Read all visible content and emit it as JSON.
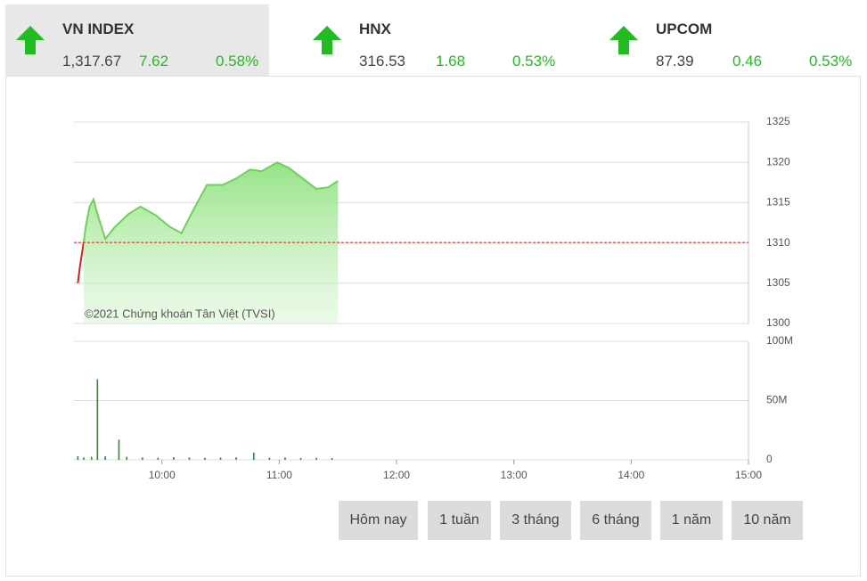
{
  "header": {
    "indices": [
      {
        "name": "VN INDEX",
        "value": "1,317.67",
        "change": "7.62",
        "percent": "0.58%"
      },
      {
        "name": "HNX",
        "value": "316.53",
        "change": "1.68",
        "percent": "0.53%"
      },
      {
        "name": "UPCOM",
        "value": "87.39",
        "change": "0.46",
        "percent": "0.53%"
      }
    ]
  },
  "ranges": [
    "Hôm nay",
    "1 tuần",
    "3 tháng",
    "6 tháng",
    "1 năm",
    "10 năm"
  ],
  "chart_data": [
    {
      "type": "area",
      "annotation": "©2021 Chứng khoán Tân Việt (TVSI)",
      "xlim": [
        "09:15",
        "15:00"
      ],
      "ylim": [
        1300,
        1325
      ],
      "yticks": [
        1300,
        1305,
        1310,
        1315,
        1320,
        1325
      ],
      "grid": true,
      "reference": 1310.05,
      "reference_color": "#d62020",
      "series": [
        {
          "color": "#d62020",
          "x": [
            "09:17",
            "09:18",
            "09:20"
          ],
          "values": [
            1305.0,
            1307.0,
            1310.1
          ]
        },
        {
          "color": "#7ddc6e",
          "x": [
            "09:20",
            "09:21",
            "09:23",
            "09:25",
            "09:27",
            "09:31",
            "09:36",
            "09:43",
            "09:49",
            "09:57",
            "10:04",
            "10:10",
            "10:15",
            "10:23",
            "10:31",
            "10:38",
            "10:45",
            "10:51",
            "10:59",
            "11:05",
            "11:12",
            "11:19",
            "11:25",
            "11:30"
          ],
          "values": [
            1310.1,
            1312.0,
            1314.5,
            1315.4,
            1313.6,
            1310.5,
            1312.0,
            1313.6,
            1314.5,
            1313.4,
            1312.0,
            1311.2,
            1313.6,
            1317.2,
            1317.2,
            1318.0,
            1319.1,
            1318.9,
            1320.0,
            1319.3,
            1318.0,
            1316.7,
            1316.9,
            1317.7
          ]
        }
      ]
    },
    {
      "type": "bar",
      "color": "#2e8b2e",
      "xlim": [
        "09:15",
        "15:00"
      ],
      "xticks": [
        "10:00",
        "11:00",
        "12:00",
        "13:00",
        "14:00",
        "15:00"
      ],
      "ylim": [
        0,
        100000000
      ],
      "yticks": [
        0,
        {
          "value": 50000000,
          "label": "50M"
        },
        {
          "value": 100000000,
          "label": "100M"
        }
      ],
      "grid": true,
      "x": [
        "09:17",
        "09:20",
        "09:24",
        "09:27",
        "09:31",
        "09:38",
        "09:42",
        "09:50",
        "09:58",
        "10:06",
        "10:14",
        "10:22",
        "10:30",
        "10:38",
        "10:47",
        "10:55",
        "11:03",
        "11:11",
        "11:19",
        "11:27"
      ],
      "values": [
        3000000,
        2000000,
        2500000,
        68000000,
        3000000,
        17000000,
        2500000,
        2000000,
        1800000,
        2200000,
        2000000,
        1700000,
        1900000,
        2100000,
        6000000,
        1800000,
        2000000,
        1600000,
        1700000,
        1500000
      ]
    }
  ]
}
